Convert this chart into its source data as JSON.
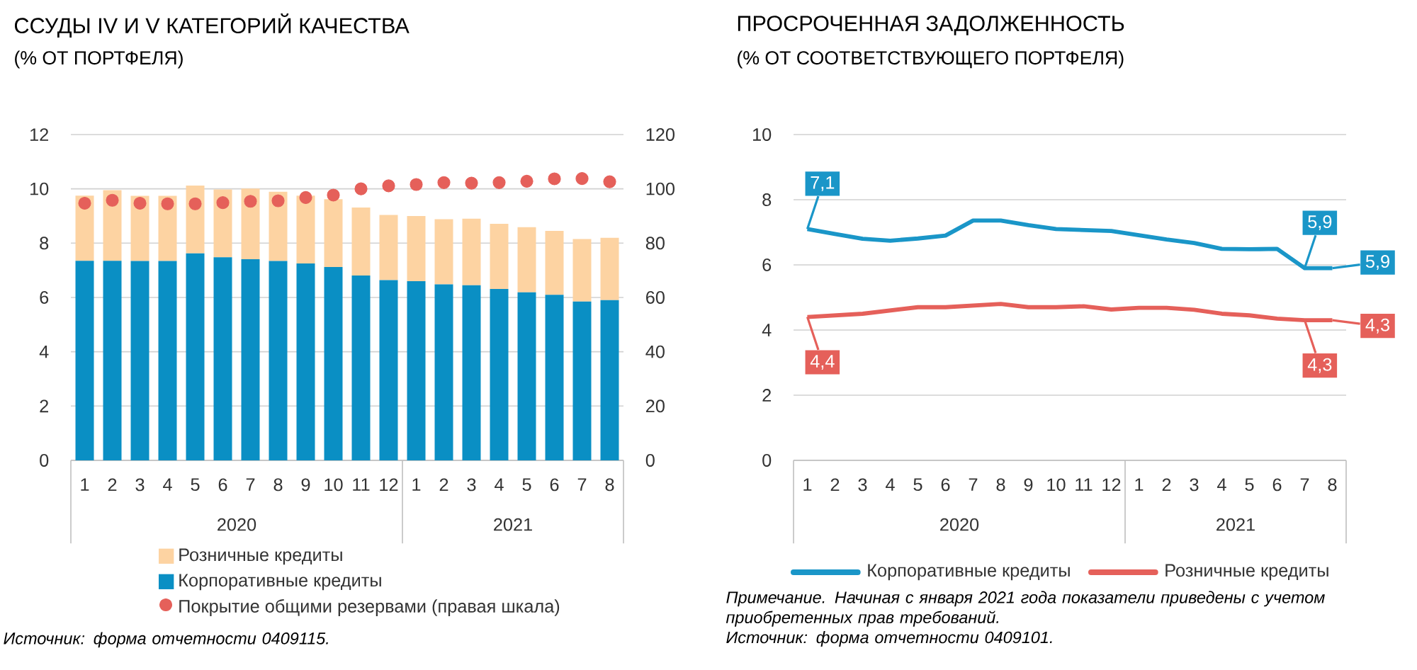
{
  "chart_data": [
    {
      "type": "bar",
      "title": "ССУДЫ IV И V КАТЕГОРИЙ КАЧЕСТВА",
      "subtitle": "(% ОТ ПОРТФЕЛЯ)",
      "stacked": true,
      "categories": [
        "1",
        "2",
        "3",
        "4",
        "5",
        "6",
        "7",
        "8",
        "9",
        "10",
        "11",
        "12",
        "1",
        "2",
        "3",
        "4",
        "5",
        "6",
        "7",
        "8"
      ],
      "series": [
        {
          "name": "Корпоративные кредиты",
          "color": "#0a8fc4",
          "values": [
            7.35,
            7.35,
            7.34,
            7.34,
            7.62,
            7.48,
            7.41,
            7.34,
            7.25,
            7.12,
            6.81,
            6.64,
            6.6,
            6.48,
            6.45,
            6.31,
            6.19,
            6.1,
            5.85,
            5.9
          ]
        },
        {
          "name": "Розничные кредиты",
          "color": "#fdd3a2",
          "values": [
            2.4,
            2.6,
            2.4,
            2.4,
            2.5,
            2.5,
            2.6,
            2.55,
            2.5,
            2.5,
            2.5,
            2.4,
            2.4,
            2.4,
            2.45,
            2.4,
            2.4,
            2.35,
            2.3,
            2.3
          ]
        },
        {
          "name": "Покрытие общими резервами (правая шкала)",
          "type": "scatter",
          "axis": "y2",
          "marker": "circle",
          "color": "#e5605a",
          "values": [
            94.7,
            95.8,
            94.7,
            94.5,
            94.5,
            94.9,
            95.4,
            95.6,
            96.8,
            97.7,
            100.0,
            101.1,
            101.6,
            102.3,
            102.1,
            102.3,
            102.8,
            103.7,
            103.8,
            102.6
          ]
        }
      ],
      "ylim": [
        0,
        12
      ],
      "yticks": [
        0,
        2,
        4,
        6,
        8,
        10,
        12
      ],
      "y2lim": [
        0,
        120
      ],
      "y2ticks": [
        0,
        20,
        40,
        60,
        80,
        100,
        120
      ],
      "grid": "y",
      "legend": "bottom",
      "annotations": [
        "2020",
        "2021",
        "Источник: форма отчетности 0409115."
      ]
    },
    {
      "type": "line",
      "title": "ПРОСРОЧЕННАЯ ЗАДОЛЖЕННОСТЬ",
      "subtitle": "(% ОТ СООТВЕТСТВУЮЩЕГО ПОРТФЕЛЯ)",
      "categories": [
        "1",
        "2",
        "3",
        "4",
        "5",
        "6",
        "7",
        "8",
        "9",
        "10",
        "11",
        "12",
        "1",
        "2",
        "3",
        "4",
        "5",
        "6",
        "7",
        "8"
      ],
      "series": [
        {
          "name": "Корпоративные кредиты",
          "color": "#1a96c8",
          "values": [
            7.1,
            6.95,
            6.8,
            6.74,
            6.81,
            6.9,
            7.36,
            7.36,
            7.22,
            7.1,
            7.07,
            7.04,
            6.91,
            6.78,
            6.67,
            6.49,
            6.48,
            6.49,
            5.9,
            5.9
          ],
          "value_labels": [
            "7,1",
            null,
            null,
            null,
            null,
            null,
            null,
            null,
            null,
            null,
            null,
            null,
            null,
            null,
            null,
            null,
            null,
            null,
            "5,9",
            "5,9"
          ]
        },
        {
          "name": "Розничные кредиты",
          "color": "#e5605a",
          "values": [
            4.4,
            4.45,
            4.5,
            4.6,
            4.7,
            4.7,
            4.75,
            4.8,
            4.7,
            4.7,
            4.73,
            4.63,
            4.68,
            4.68,
            4.62,
            4.5,
            4.45,
            4.35,
            4.3,
            4.3
          ],
          "value_labels": [
            "4,4",
            null,
            null,
            null,
            null,
            null,
            null,
            null,
            null,
            null,
            null,
            null,
            null,
            null,
            null,
            null,
            null,
            null,
            "4,3",
            "4,3"
          ]
        }
      ],
      "ylim": [
        0,
        10
      ],
      "yticks": [
        0,
        2,
        4,
        6,
        8,
        10
      ],
      "grid": "y",
      "legend": "bottom",
      "annotations": [
        "2020",
        "2021",
        "Примечание. Начиная с января 2021 года показатели приведены с учетом приобретенных прав требований.",
        "Источник: форма отчетности 0409101."
      ]
    }
  ]
}
